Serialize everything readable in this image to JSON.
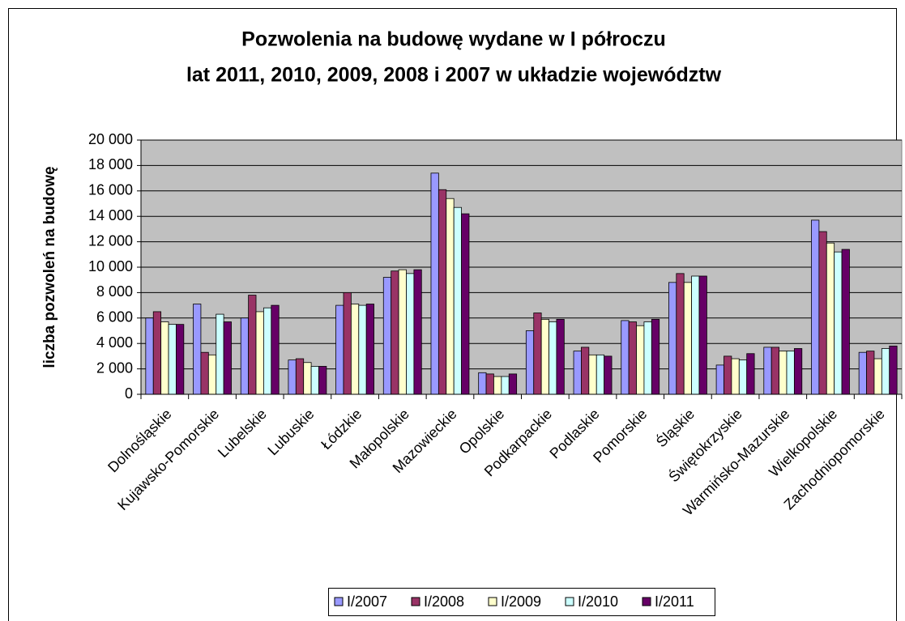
{
  "chart_data": {
    "type": "bar",
    "title": [
      "Pozwolenia na budowę wydane w I półroczu",
      "lat 2011, 2010, 2009, 2008 i 2007 w układzie województw"
    ],
    "y_label": "liczba pozwoleń na budowę",
    "categories": [
      "Dolnośląskie",
      "Kujawsko-Pomorskie",
      "Lubelskie",
      "Lubuskie",
      "Łódzkie",
      "Małopolskie",
      "Mazowieckie",
      "Opolskie",
      "Podkarpackie",
      "Podlaskie",
      "Pomorskie",
      "Śląskie",
      "Świętokrzyskie",
      "Warmińsko-Mazurskie",
      "Wielkopolskie",
      "Zachodniopomorskie"
    ],
    "series": [
      {
        "name": "I/2007",
        "color": "#9999ff",
        "values": [
          6000,
          7100,
          6000,
          2700,
          7000,
          9200,
          17400,
          1700,
          5000,
          3400,
          5800,
          8800,
          2300,
          3700,
          13700,
          3300
        ]
      },
      {
        "name": "I/2008",
        "color": "#993366",
        "values": [
          6500,
          3300,
          7800,
          2800,
          8000,
          9700,
          16100,
          1600,
          6400,
          3700,
          5700,
          9500,
          3000,
          3700,
          12800,
          3400
        ]
      },
      {
        "name": "I/2009",
        "color": "#ffffcc",
        "values": [
          5700,
          3100,
          6500,
          2500,
          7100,
          9800,
          15400,
          1400,
          5900,
          3100,
          5400,
          8800,
          2800,
          3400,
          11900,
          2800
        ]
      },
      {
        "name": "I/2010",
        "color": "#ccffff",
        "values": [
          5500,
          6300,
          6800,
          2200,
          7000,
          9500,
          14700,
          1400,
          5700,
          3100,
          5700,
          9300,
          2700,
          3400,
          11200,
          3600
        ]
      },
      {
        "name": "I/2011",
        "color": "#660066",
        "values": [
          5500,
          5700,
          7000,
          2200,
          7100,
          9800,
          14200,
          1600,
          5900,
          3000,
          5900,
          9300,
          3200,
          3600,
          11400,
          3800
        ]
      }
    ],
    "ylim": [
      0,
      20000
    ],
    "yticks": [
      0,
      {
        "value": 2000,
        "label": "2 000"
      },
      {
        "value": 4000,
        "label": "4 000"
      },
      {
        "value": 6000,
        "label": "6 000"
      },
      {
        "value": 8000,
        "label": "8 000"
      },
      {
        "value": 10000,
        "label": "10 000"
      },
      {
        "value": 12000,
        "label": "12 000"
      },
      {
        "value": 14000,
        "label": "14 000"
      },
      {
        "value": 16000,
        "label": "16 000"
      },
      {
        "value": 18000,
        "label": "18 000"
      },
      {
        "value": 20000,
        "label": "20 000"
      }
    ],
    "grid": true,
    "plot_background": "#c0c0c0",
    "legend_position": "bottom"
  }
}
